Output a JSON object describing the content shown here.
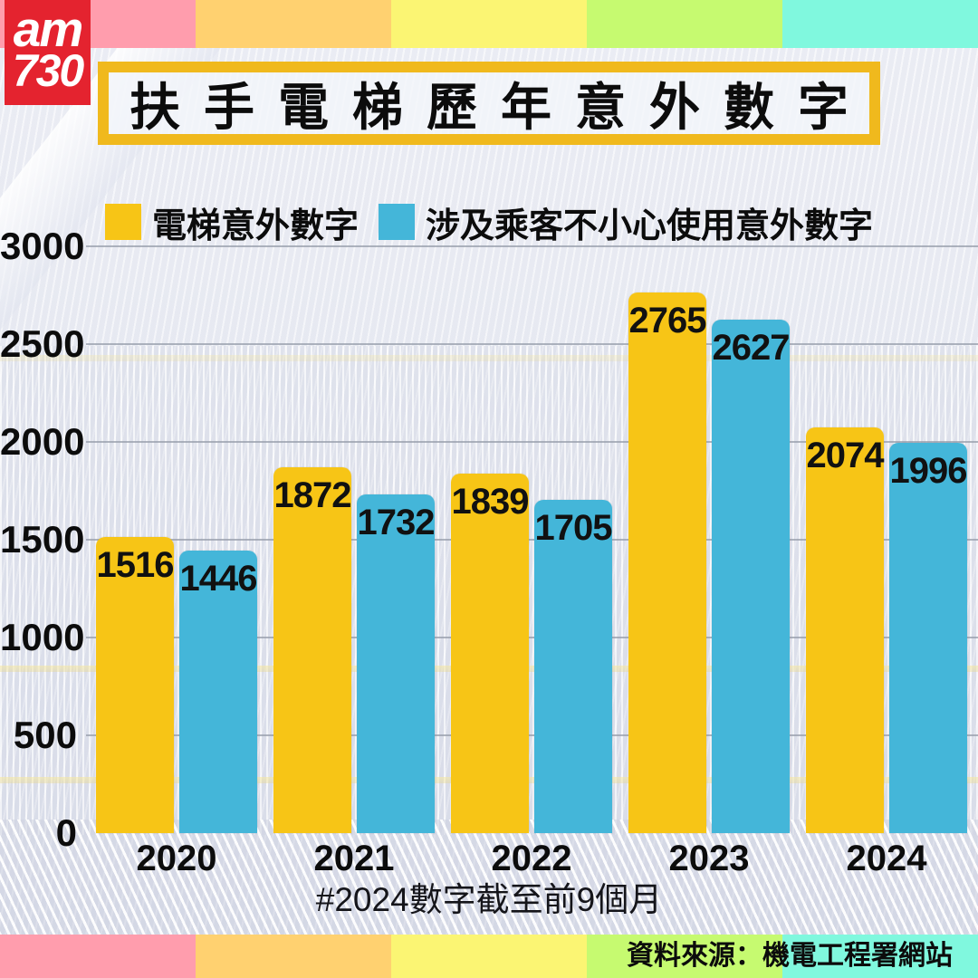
{
  "brand": {
    "logo_line1": "am",
    "logo_line2": "730",
    "logo_bg": "#E4232F"
  },
  "title": "扶手電梯歷年意外數字",
  "stripes": [
    "#FF9DAD",
    "#FFD170",
    "#FBF573",
    "#C6FA70",
    "#80F8DE"
  ],
  "legend": [
    {
      "label": "電梯意外數字",
      "color": "#F7C516"
    },
    {
      "label": "涉及乘客不小心使用意外數字",
      "color": "#44B6D9"
    }
  ],
  "chart_data": {
    "type": "bar",
    "categories": [
      "2020",
      "2021",
      "2022",
      "2023",
      "2024"
    ],
    "series": [
      {
        "name": "電梯意外數字",
        "color": "#F7C516",
        "values": [
          1516,
          1872,
          1839,
          2765,
          2074
        ]
      },
      {
        "name": "涉及乘客不小心使用意外數字",
        "color": "#44B6D9",
        "values": [
          1446,
          1732,
          1705,
          2627,
          1996
        ]
      }
    ],
    "title": "扶手電梯歷年意外數字",
    "xlabel": "",
    "ylabel": "",
    "ylim": [
      0,
      3000
    ],
    "yticks": [
      0,
      500,
      1000,
      1500,
      2000,
      2500,
      3000
    ],
    "grid": true,
    "legend_position": "top",
    "value_labels": "inside-top"
  },
  "footnote": "#2024數字截至前9個月",
  "source": "資料來源：機電工程署網站",
  "colors": {
    "title_border": "#F0B91D",
    "gridline": "#969CAA",
    "text": "#0C0C0C",
    "background": "#ECEEF5"
  }
}
